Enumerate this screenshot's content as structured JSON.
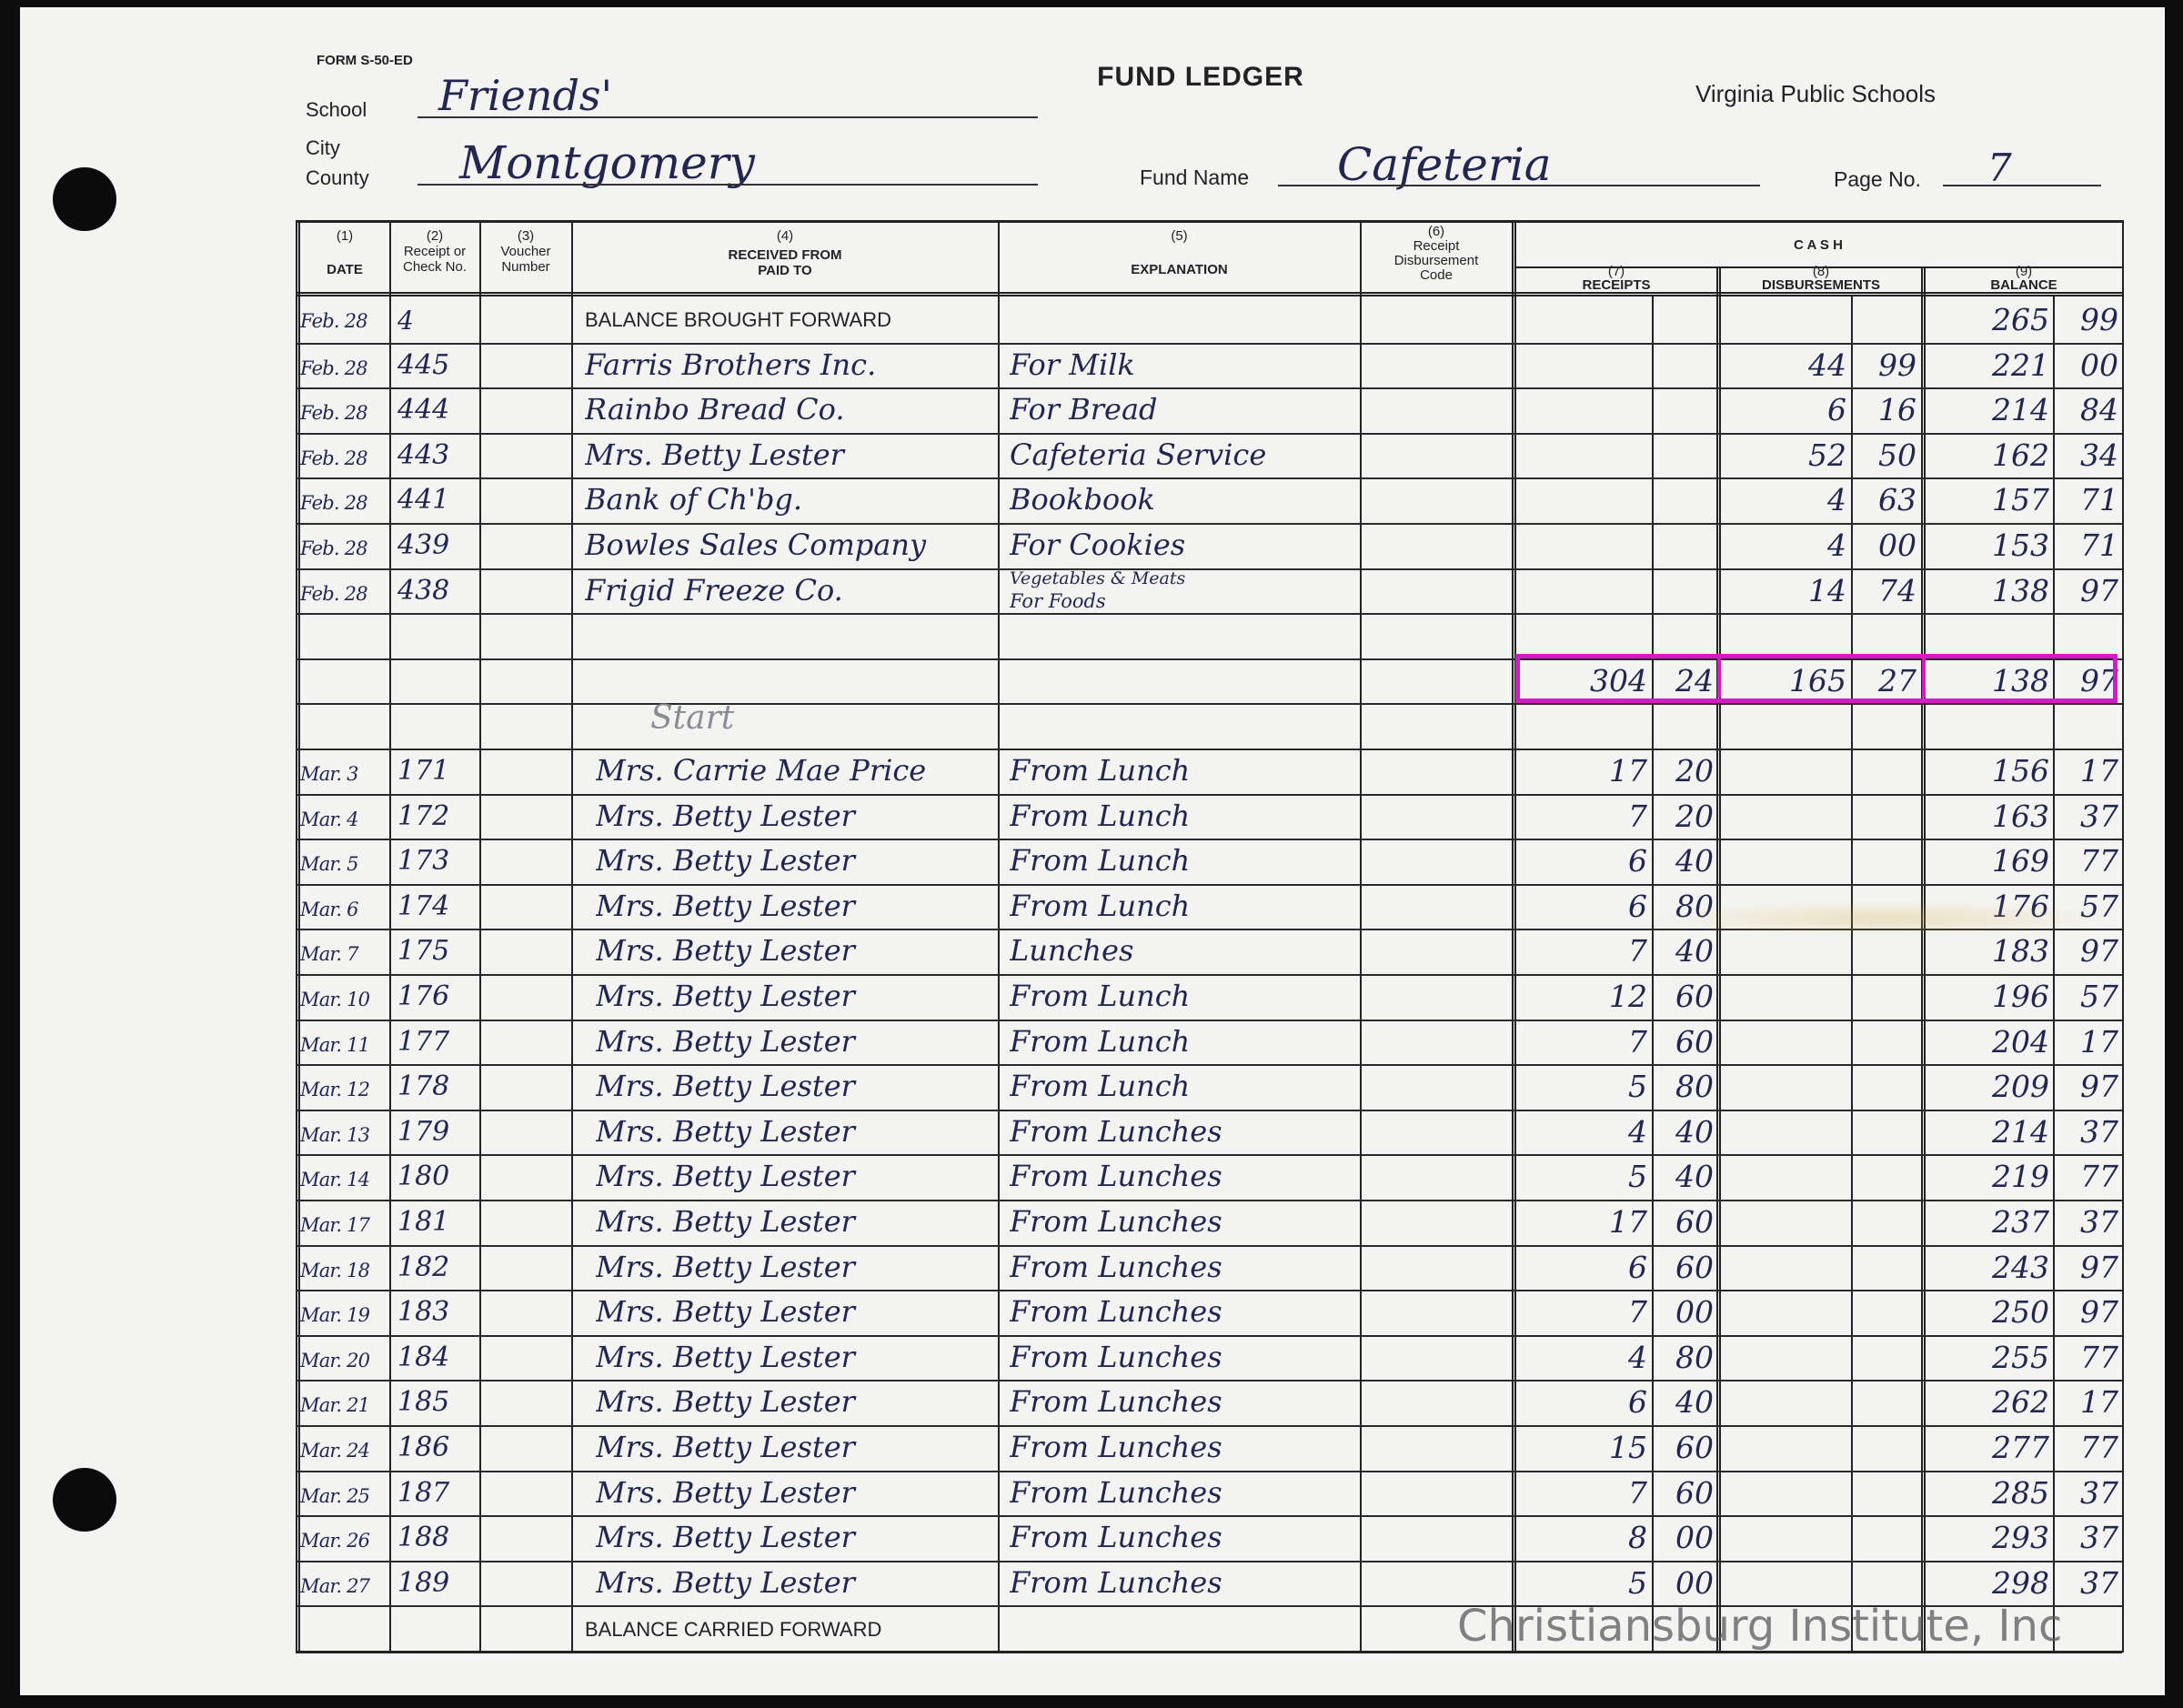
{
  "form": {
    "form_number": "FORM S-50-ED",
    "title": "FUND LEDGER",
    "issuer": "Virginia Public Schools",
    "school_label": "School",
    "school_value": "Friends'",
    "city_label": "City",
    "county_label": "County",
    "county_value": "Montgomery",
    "fund_name_label": "Fund Name",
    "fund_name_value": "Cafeteria",
    "page_label": "Page No.",
    "page_value": "7"
  },
  "columns": {
    "date": {
      "num": "(1)",
      "label": "DATE"
    },
    "receipt_no": {
      "num": "(2)",
      "label1": "Receipt or",
      "label2": "Check No."
    },
    "voucher": {
      "num": "(3)",
      "label1": "Voucher",
      "label2": "Number"
    },
    "party": {
      "num": "(4)",
      "label1": "RECEIVED FROM",
      "label2": "PAID TO"
    },
    "explanation": {
      "num": "(5)",
      "label": "EXPLANATION"
    },
    "code": {
      "num": "(6)",
      "label1": "Receipt",
      "label2": "Disbursement",
      "label3": "Code"
    },
    "cash": "C A S H",
    "receipts": {
      "num": "(7)",
      "label": "RECEIPTS"
    },
    "disbursements": {
      "num": "(8)",
      "label": "DISBURSEMENTS"
    },
    "balance": {
      "num": "(9)",
      "label": "BALANCE"
    }
  },
  "brought_forward": {
    "date": "Feb. 28",
    "number": "4",
    "label": "BALANCE BROUGHT FORWARD",
    "balance": {
      "dollars": "265",
      "cents": "99"
    }
  },
  "feb_entries": [
    {
      "date": "Feb. 28",
      "number": "445",
      "party": "Farris Brothers Inc.",
      "explanation": "For Milk",
      "disbursement": {
        "dollars": "44",
        "cents": "99"
      },
      "balance": {
        "dollars": "221",
        "cents": "00"
      }
    },
    {
      "date": "Feb. 28",
      "number": "444",
      "party": "Rainbo Bread Co.",
      "explanation": "For Bread",
      "disbursement": {
        "dollars": "6",
        "cents": "16"
      },
      "balance": {
        "dollars": "214",
        "cents": "84"
      }
    },
    {
      "date": "Feb. 28",
      "number": "443",
      "party": "Mrs. Betty Lester",
      "explanation": "Cafeteria Service",
      "disbursement": {
        "dollars": "52",
        "cents": "50"
      },
      "balance": {
        "dollars": "162",
        "cents": "34"
      }
    },
    {
      "date": "Feb. 28",
      "number": "441",
      "party": "Bank of Ch'bg.",
      "explanation": "Bookbook",
      "disbursement": {
        "dollars": "4",
        "cents": "63"
      },
      "balance": {
        "dollars": "157",
        "cents": "71"
      }
    },
    {
      "date": "Feb. 28",
      "number": "439",
      "party": "Bowles Sales Company",
      "explanation": "For Cookies",
      "disbursement": {
        "dollars": "4",
        "cents": "00"
      },
      "balance": {
        "dollars": "153",
        "cents": "71"
      }
    },
    {
      "date": "Feb. 28",
      "number": "438",
      "party": "Frigid Freeze Co.",
      "explanation": "Vegetables & Meats",
      "explanation2": "For Foods",
      "disbursement": {
        "dollars": "14",
        "cents": "74"
      },
      "balance": {
        "dollars": "138",
        "cents": "97"
      }
    }
  ],
  "totals": {
    "receipts": {
      "dollars": "304",
      "cents": "24"
    },
    "disbursements": {
      "dollars": "165",
      "cents": "27"
    },
    "balance": {
      "dollars": "138",
      "cents": "97"
    },
    "highlight_color": "#d21cc4"
  },
  "start_note": "Start",
  "mar_entries": [
    {
      "date": "Mar. 3",
      "number": "171",
      "party": "Mrs. Carrie Mae Price",
      "explanation": "From Lunch",
      "receipt": {
        "dollars": "17",
        "cents": "20"
      },
      "balance": {
        "dollars": "156",
        "cents": "17"
      }
    },
    {
      "date": "Mar. 4",
      "number": "172",
      "party": "Mrs. Betty Lester",
      "explanation": "From Lunch",
      "receipt": {
        "dollars": "7",
        "cents": "20"
      },
      "balance": {
        "dollars": "163",
        "cents": "37"
      }
    },
    {
      "date": "Mar. 5",
      "number": "173",
      "party": "Mrs. Betty Lester",
      "explanation": "From Lunch",
      "receipt": {
        "dollars": "6",
        "cents": "40"
      },
      "balance": {
        "dollars": "169",
        "cents": "77"
      }
    },
    {
      "date": "Mar. 6",
      "number": "174",
      "party": "Mrs. Betty Lester",
      "explanation": "From Lunch",
      "receipt": {
        "dollars": "6",
        "cents": "80"
      },
      "balance": {
        "dollars": "176",
        "cents": "57"
      }
    },
    {
      "date": "Mar. 7",
      "number": "175",
      "party": "Mrs. Betty Lester",
      "explanation": "Lunches",
      "receipt": {
        "dollars": "7",
        "cents": "40"
      },
      "balance": {
        "dollars": "183",
        "cents": "97"
      }
    },
    {
      "date": "Mar. 10",
      "number": "176",
      "party": "Mrs. Betty Lester",
      "explanation": "From Lunch",
      "receipt": {
        "dollars": "12",
        "cents": "60"
      },
      "balance": {
        "dollars": "196",
        "cents": "57"
      }
    },
    {
      "date": "Mar. 11",
      "number": "177",
      "party": "Mrs. Betty Lester",
      "explanation": "From Lunch",
      "receipt": {
        "dollars": "7",
        "cents": "60"
      },
      "balance": {
        "dollars": "204",
        "cents": "17"
      }
    },
    {
      "date": "Mar. 12",
      "number": "178",
      "party": "Mrs. Betty Lester",
      "explanation": "From Lunch",
      "receipt": {
        "dollars": "5",
        "cents": "80"
      },
      "balance": {
        "dollars": "209",
        "cents": "97"
      }
    },
    {
      "date": "Mar. 13",
      "number": "179",
      "party": "Mrs. Betty Lester",
      "explanation": "From Lunches",
      "receipt": {
        "dollars": "4",
        "cents": "40"
      },
      "balance": {
        "dollars": "214",
        "cents": "37"
      }
    },
    {
      "date": "Mar. 14",
      "number": "180",
      "party": "Mrs. Betty Lester",
      "explanation": "From Lunches",
      "receipt": {
        "dollars": "5",
        "cents": "40"
      },
      "balance": {
        "dollars": "219",
        "cents": "77"
      }
    },
    {
      "date": "Mar. 17",
      "number": "181",
      "party": "Mrs. Betty Lester",
      "explanation": "From Lunches",
      "receipt": {
        "dollars": "17",
        "cents": "60"
      },
      "balance": {
        "dollars": "237",
        "cents": "37"
      }
    },
    {
      "date": "Mar. 18",
      "number": "182",
      "party": "Mrs. Betty Lester",
      "explanation": "From Lunches",
      "receipt": {
        "dollars": "6",
        "cents": "60"
      },
      "balance": {
        "dollars": "243",
        "cents": "97"
      }
    },
    {
      "date": "Mar. 19",
      "number": "183",
      "party": "Mrs. Betty Lester",
      "explanation": "From Lunches",
      "receipt": {
        "dollars": "7",
        "cents": "00"
      },
      "balance": {
        "dollars": "250",
        "cents": "97"
      }
    },
    {
      "date": "Mar. 20",
      "number": "184",
      "party": "Mrs. Betty Lester",
      "explanation": "From Lunches",
      "receipt": {
        "dollars": "4",
        "cents": "80"
      },
      "balance": {
        "dollars": "255",
        "cents": "77"
      }
    },
    {
      "date": "Mar. 21",
      "number": "185",
      "party": "Mrs. Betty Lester",
      "explanation": "From Lunches",
      "receipt": {
        "dollars": "6",
        "cents": "40"
      },
      "balance": {
        "dollars": "262",
        "cents": "17"
      }
    },
    {
      "date": "Mar. 24",
      "number": "186",
      "party": "Mrs. Betty Lester",
      "explanation": "From Lunches",
      "receipt": {
        "dollars": "15",
        "cents": "60"
      },
      "balance": {
        "dollars": "277",
        "cents": "77"
      }
    },
    {
      "date": "Mar. 25",
      "number": "187",
      "party": "Mrs. Betty Lester",
      "explanation": "From Lunches",
      "receipt": {
        "dollars": "7",
        "cents": "60"
      },
      "balance": {
        "dollars": "285",
        "cents": "37"
      }
    },
    {
      "date": "Mar. 26",
      "number": "188",
      "party": "Mrs. Betty Lester",
      "explanation": "From Lunches",
      "receipt": {
        "dollars": "8",
        "cents": "00"
      },
      "balance": {
        "dollars": "293",
        "cents": "37"
      }
    },
    {
      "date": "Mar. 27",
      "number": "189",
      "party": "Mrs. Betty Lester",
      "explanation": "From Lunches",
      "receipt": {
        "dollars": "5",
        "cents": "00"
      },
      "balance": {
        "dollars": "298",
        "cents": "37"
      }
    }
  ],
  "carried_forward": {
    "label": "BALANCE CARRIED FORWARD"
  },
  "watermark": "Christiansburg Institute, Inc"
}
